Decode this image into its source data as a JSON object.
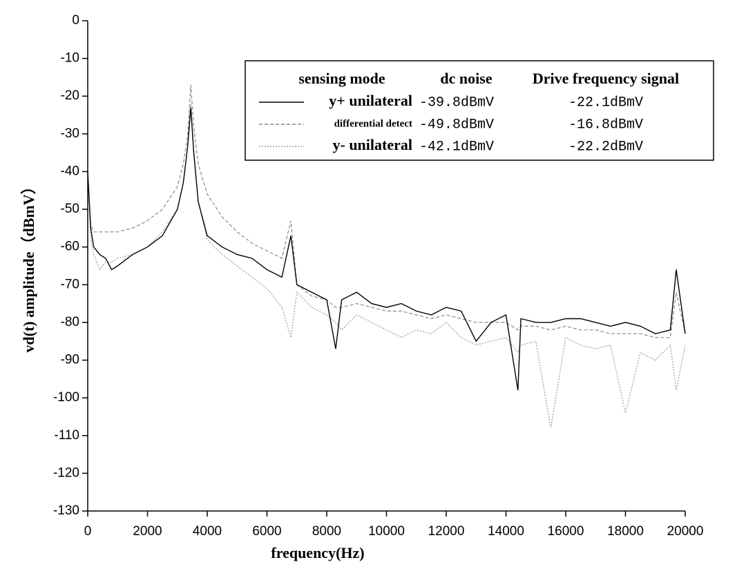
{
  "chart_data": {
    "type": "line",
    "x_label": "frequency(Hz)",
    "y_label": "vd(t) amplitude（dBmV）",
    "xlim": [
      0,
      20000
    ],
    "xticks": [
      0,
      2000,
      4000,
      6000,
      8000,
      10000,
      12000,
      14000,
      16000,
      18000,
      20000
    ],
    "ylim": [
      -130,
      0
    ],
    "yticks": [
      0,
      -10,
      -20,
      -30,
      -40,
      -50,
      -60,
      -70,
      -80,
      -90,
      -100,
      -110,
      -120,
      -130
    ],
    "grid": false,
    "legend_headers": [
      "sensing mode",
      "dc noise",
      "Drive frequency signal"
    ],
    "x": [
      0,
      100,
      200,
      400,
      600,
      800,
      1000,
      1500,
      2000,
      2500,
      3000,
      3200,
      3350,
      3450,
      3550,
      3700,
      4000,
      4500,
      5000,
      5500,
      6000,
      6500,
      6800,
      7000,
      7500,
      8000,
      8300,
      8500,
      9000,
      9500,
      10000,
      10500,
      11000,
      11500,
      12000,
      12500,
      13000,
      13500,
      14000,
      14400,
      14500,
      15000,
      15500,
      16000,
      16500,
      17000,
      17500,
      18000,
      18500,
      19000,
      19500,
      19700,
      20000
    ],
    "series": [
      {
        "name": "y+ unilateral",
        "color": "#000000",
        "style": "solid",
        "dc_noise": "-39.8dBmV",
        "drive_signal": "-22.1dBmV",
        "values": [
          -40,
          -55,
          -60,
          -62,
          -63,
          -66,
          -65,
          -62,
          -60,
          -57,
          -50,
          -43,
          -33,
          -23,
          -35,
          -48,
          -57,
          -60,
          -62,
          -63,
          -66,
          -68,
          -57,
          -70,
          -72,
          -74,
          -87,
          -74,
          -72,
          -75,
          -76,
          -75,
          -77,
          -78,
          -76,
          -77,
          -85,
          -80,
          -78,
          -98,
          -79,
          -80,
          -80,
          -79,
          -79,
          -80,
          -81,
          -80,
          -81,
          -83,
          -82,
          -66,
          -83
        ]
      },
      {
        "name": "differential detect",
        "color": "#888888",
        "style": "dashed",
        "dc_noise": "-49.8dBmV",
        "drive_signal": "-16.8dBmV",
        "values": [
          -40,
          -54,
          -56,
          -56,
          -56,
          -56,
          -56,
          -55,
          -53,
          -50,
          -44,
          -38,
          -30,
          -17,
          -28,
          -38,
          -46,
          -52,
          -56,
          -59,
          -61,
          -63,
          -53,
          -70,
          -73,
          -74,
          -76,
          -76,
          -75,
          -76,
          -77,
          -77,
          -78,
          -79,
          -78,
          -79,
          -80,
          -80,
          -80,
          -82,
          -81,
          -81,
          -82,
          -81,
          -82,
          -82,
          -83,
          -83,
          -83,
          -84,
          -84,
          -72,
          -83
        ]
      },
      {
        "name": "y- unilateral",
        "color": "#999999",
        "style": "dotted",
        "dc_noise": "-42.1dBmV",
        "drive_signal": "-22.2dBmV",
        "values": [
          -40,
          -58,
          -62,
          -66,
          -64,
          -64,
          -63,
          -62,
          -60,
          -56,
          -50,
          -43,
          -33,
          -22,
          -34,
          -48,
          -58,
          -62,
          -65,
          -68,
          -71,
          -76,
          -84,
          -72,
          -76,
          -78,
          -80,
          -82,
          -78,
          -80,
          -82,
          -84,
          -82,
          -83,
          -80,
          -84,
          -86,
          -85,
          -84,
          -88,
          -86,
          -85,
          -108,
          -84,
          -86,
          -87,
          -86,
          -104,
          -88,
          -90,
          -86,
          -98,
          -86
        ]
      }
    ]
  }
}
